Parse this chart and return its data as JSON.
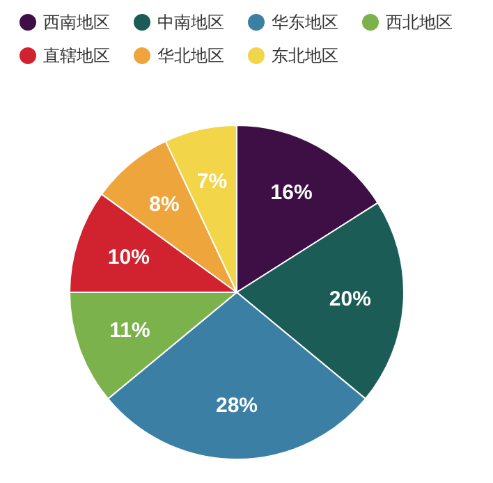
{
  "chart_data": {
    "type": "pie",
    "categories": [
      "西南地区",
      "中南地区",
      "华东地区",
      "西北地区",
      "直辖地区",
      "华北地区",
      "东北地区"
    ],
    "values": [
      16,
      20,
      28,
      11,
      10,
      8,
      7
    ],
    "colors": [
      "#3d0f45",
      "#1b5c57",
      "#3b7fa5",
      "#7bb24b",
      "#d0232f",
      "#eea53b",
      "#f2d548"
    ],
    "value_labels": [
      "16%",
      "20%",
      "28%",
      "11%",
      "10%",
      "8%",
      "7%"
    ],
    "legend": "top"
  }
}
